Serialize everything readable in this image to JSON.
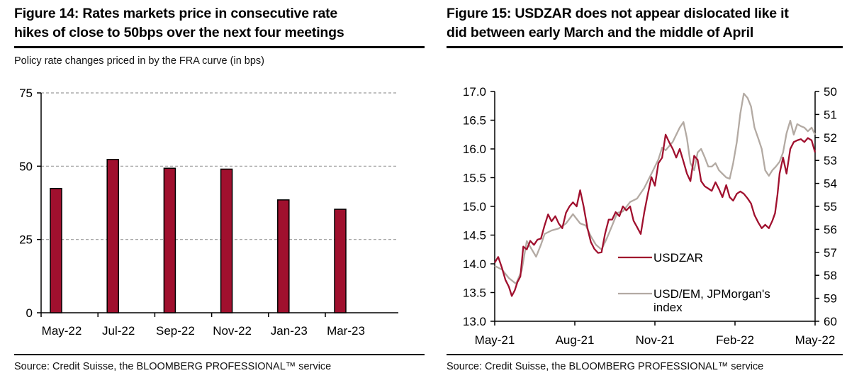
{
  "figure14": {
    "title_line1": "Figure 14: Rates markets price in consecutive rate",
    "title_line2": "hikes of close to 50bps over the next four meetings",
    "subtitle": "Policy rate changes priced in by the FRA curve (in bps)",
    "source": "Source: Credit Suisse, the BLOOMBERG PROFESSIONAL™ service"
  },
  "figure15": {
    "title_line1": "Figure 15: USDZAR does not appear dislocated like it",
    "title_line2": "did between early March and the middle of April",
    "source": "Source: Credit Suisse, the BLOOMBERG PROFESSIONAL™ service"
  },
  "colors": {
    "usdzar": "#a0102e",
    "usdem": "#b3aaa3",
    "bar": "#a0102e",
    "grid": "#9a9a9a"
  },
  "chart_data": [
    {
      "type": "bar",
      "title": "Figure 14: Rates markets price in consecutive rate hikes of close to 50bps over the next four meetings",
      "subtitle": "Policy rate changes priced in by the FRA curve (in bps)",
      "categories": [
        "May-22",
        "Jul-22",
        "Sep-22",
        "Nov-22",
        "Jan-23",
        "Mar-23"
      ],
      "values": [
        42.4,
        52.3,
        49.3,
        49.0,
        38.5,
        35.3
      ],
      "xlabel": "",
      "ylabel": "",
      "ylim": [
        0,
        75
      ],
      "yticks": [
        0,
        25,
        50,
        75
      ],
      "grid": true,
      "legend": "none"
    },
    {
      "type": "line",
      "title": "Figure 15: USDZAR does not appear dislocated like it did between early March and the middle of April",
      "x_unit": "months since May-21",
      "xlim": [
        0,
        12
      ],
      "xticks": [
        0,
        3,
        6,
        9,
        12
      ],
      "xtick_labels": [
        "May-21",
        "Aug-21",
        "Nov-21",
        "Feb-22",
        "May-22"
      ],
      "ylim_left": [
        13.0,
        17.0
      ],
      "yticks_left": [
        "13.0",
        "13.5",
        "14.0",
        "14.5",
        "15.0",
        "15.5",
        "16.0",
        "16.5",
        "17.0"
      ],
      "ylim_right": [
        60,
        50
      ],
      "yticks_right": [
        "50",
        "51",
        "52",
        "53",
        "54",
        "55",
        "56",
        "57",
        "58",
        "59",
        "60"
      ],
      "right_axis_inverted": true,
      "legend": "bottom-center",
      "series": [
        {
          "name": "USDZAR",
          "axis": "left",
          "x": [
            0,
            0.13,
            0.27,
            0.4,
            0.53,
            0.64,
            0.75,
            0.85,
            0.96,
            1.07,
            1.2,
            1.33,
            1.47,
            1.6,
            1.73,
            1.87,
            2.0,
            2.13,
            2.27,
            2.4,
            2.53,
            2.67,
            2.8,
            2.93,
            3.07,
            3.2,
            3.33,
            3.47,
            3.6,
            3.73,
            3.87,
            4.0,
            4.13,
            4.27,
            4.4,
            4.53,
            4.67,
            4.8,
            4.93,
            5.07,
            5.2,
            5.33,
            5.47,
            5.6,
            5.73,
            5.87,
            6.0,
            6.13,
            6.27,
            6.4,
            6.53,
            6.67,
            6.8,
            6.93,
            7.07,
            7.2,
            7.33,
            7.47,
            7.6,
            7.73,
            7.87,
            8.0,
            8.13,
            8.27,
            8.4,
            8.53,
            8.67,
            8.8,
            8.93,
            9.07,
            9.2,
            9.33,
            9.47,
            9.6,
            9.73,
            9.87,
            10.0,
            10.13,
            10.27,
            10.4,
            10.5,
            10.59,
            10.67,
            10.8,
            10.93,
            11.07,
            11.2,
            11.33,
            11.47,
            11.6,
            11.73,
            11.87,
            12.0
          ],
          "values": [
            14.02,
            14.12,
            13.93,
            13.72,
            13.6,
            13.44,
            13.54,
            13.68,
            13.78,
            14.3,
            14.25,
            14.4,
            14.33,
            14.42,
            14.44,
            14.67,
            14.86,
            14.74,
            14.83,
            14.7,
            14.62,
            14.89,
            15.0,
            15.07,
            15.0,
            15.28,
            15.0,
            14.63,
            14.38,
            14.26,
            14.19,
            14.2,
            14.52,
            14.77,
            14.77,
            14.9,
            14.83,
            15.0,
            14.93,
            15.0,
            14.75,
            14.64,
            14.52,
            14.89,
            15.2,
            15.51,
            15.36,
            15.75,
            15.85,
            16.25,
            16.12,
            16.0,
            15.85,
            16.0,
            15.78,
            15.57,
            15.44,
            15.88,
            15.81,
            15.44,
            15.35,
            15.31,
            15.27,
            15.42,
            15.3,
            15.16,
            15.37,
            15.16,
            15.1,
            15.22,
            15.26,
            15.22,
            15.14,
            15.05,
            14.85,
            14.72,
            14.62,
            14.68,
            14.62,
            14.75,
            14.88,
            15.2,
            15.57,
            15.85,
            15.57,
            16.0,
            16.12,
            16.15,
            16.17,
            16.12,
            16.19,
            16.15,
            15.94
          ]
        },
        {
          "name": "USD/EM, JPMorgan's index",
          "axis": "right",
          "x": [
            0,
            0.27,
            0.53,
            0.8,
            1.01,
            1.2,
            1.39,
            1.55,
            1.73,
            1.87,
            2.13,
            2.4,
            2.67,
            2.93,
            3.2,
            3.41,
            3.6,
            3.79,
            4.0,
            4.21,
            4.4,
            4.59,
            4.8,
            5.07,
            5.33,
            5.6,
            5.87,
            6.13,
            6.27,
            6.4,
            6.67,
            6.93,
            7.07,
            7.2,
            7.33,
            7.47,
            7.6,
            7.73,
            7.87,
            8.0,
            8.13,
            8.27,
            8.4,
            8.53,
            8.67,
            8.8,
            8.93,
            9.07,
            9.2,
            9.33,
            9.47,
            9.6,
            9.73,
            9.87,
            10.0,
            10.13,
            10.27,
            10.4,
            10.53,
            10.67,
            10.8,
            10.93,
            11.07,
            11.2,
            11.33,
            11.47,
            11.6,
            11.73,
            11.87,
            12.0
          ],
          "values": [
            57.59,
            57.75,
            58.12,
            58.37,
            57.8,
            56.51,
            56.88,
            57.19,
            56.67,
            56.2,
            56.05,
            55.96,
            55.74,
            55.34,
            55.74,
            55.83,
            56.3,
            56.67,
            56.88,
            56.36,
            55.83,
            55.28,
            55.22,
            54.81,
            54.66,
            54.2,
            53.58,
            52.96,
            52.44,
            52.56,
            52.19,
            51.57,
            51.33,
            52.04,
            53.12,
            53.43,
            52.65,
            52.5,
            52.87,
            53.27,
            53.27,
            53.12,
            53.43,
            53.58,
            53.74,
            53.8,
            53.12,
            52.19,
            50.96,
            50.09,
            50.28,
            50.65,
            51.57,
            52.04,
            52.5,
            53.43,
            53.67,
            53.43,
            53.27,
            53.06,
            52.65,
            51.82,
            51.27,
            51.88,
            51.42,
            51.51,
            51.57,
            51.73,
            51.57,
            51.88
          ]
        }
      ]
    }
  ]
}
